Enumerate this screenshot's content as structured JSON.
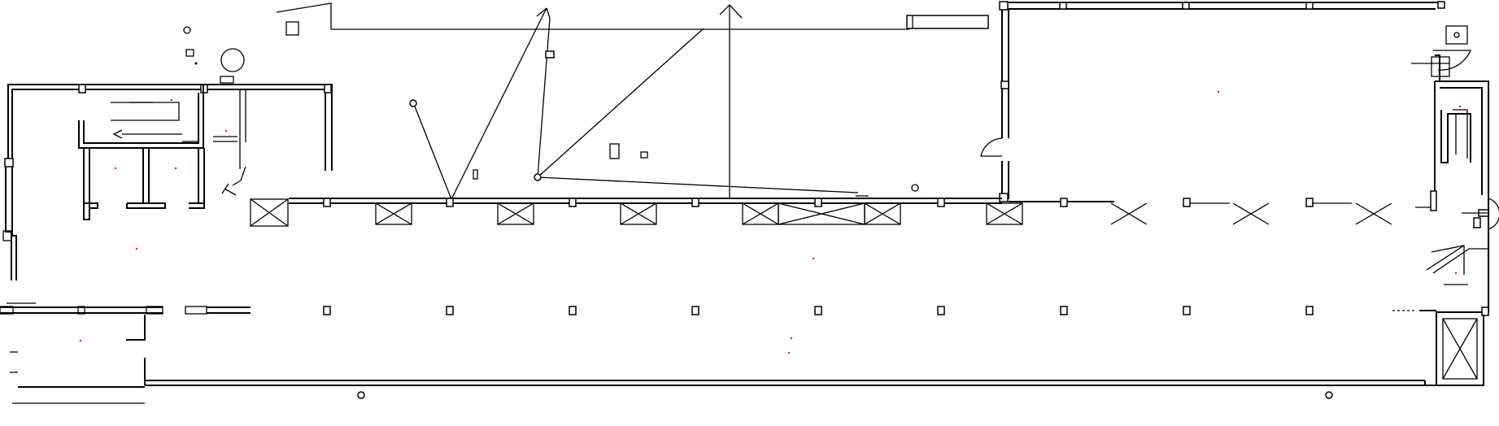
{
  "drawing": {
    "type": "architectural floor plan",
    "line_color": "#000000",
    "background": "#ffffff",
    "marker_color": "#e0201a",
    "visible_text": []
  }
}
